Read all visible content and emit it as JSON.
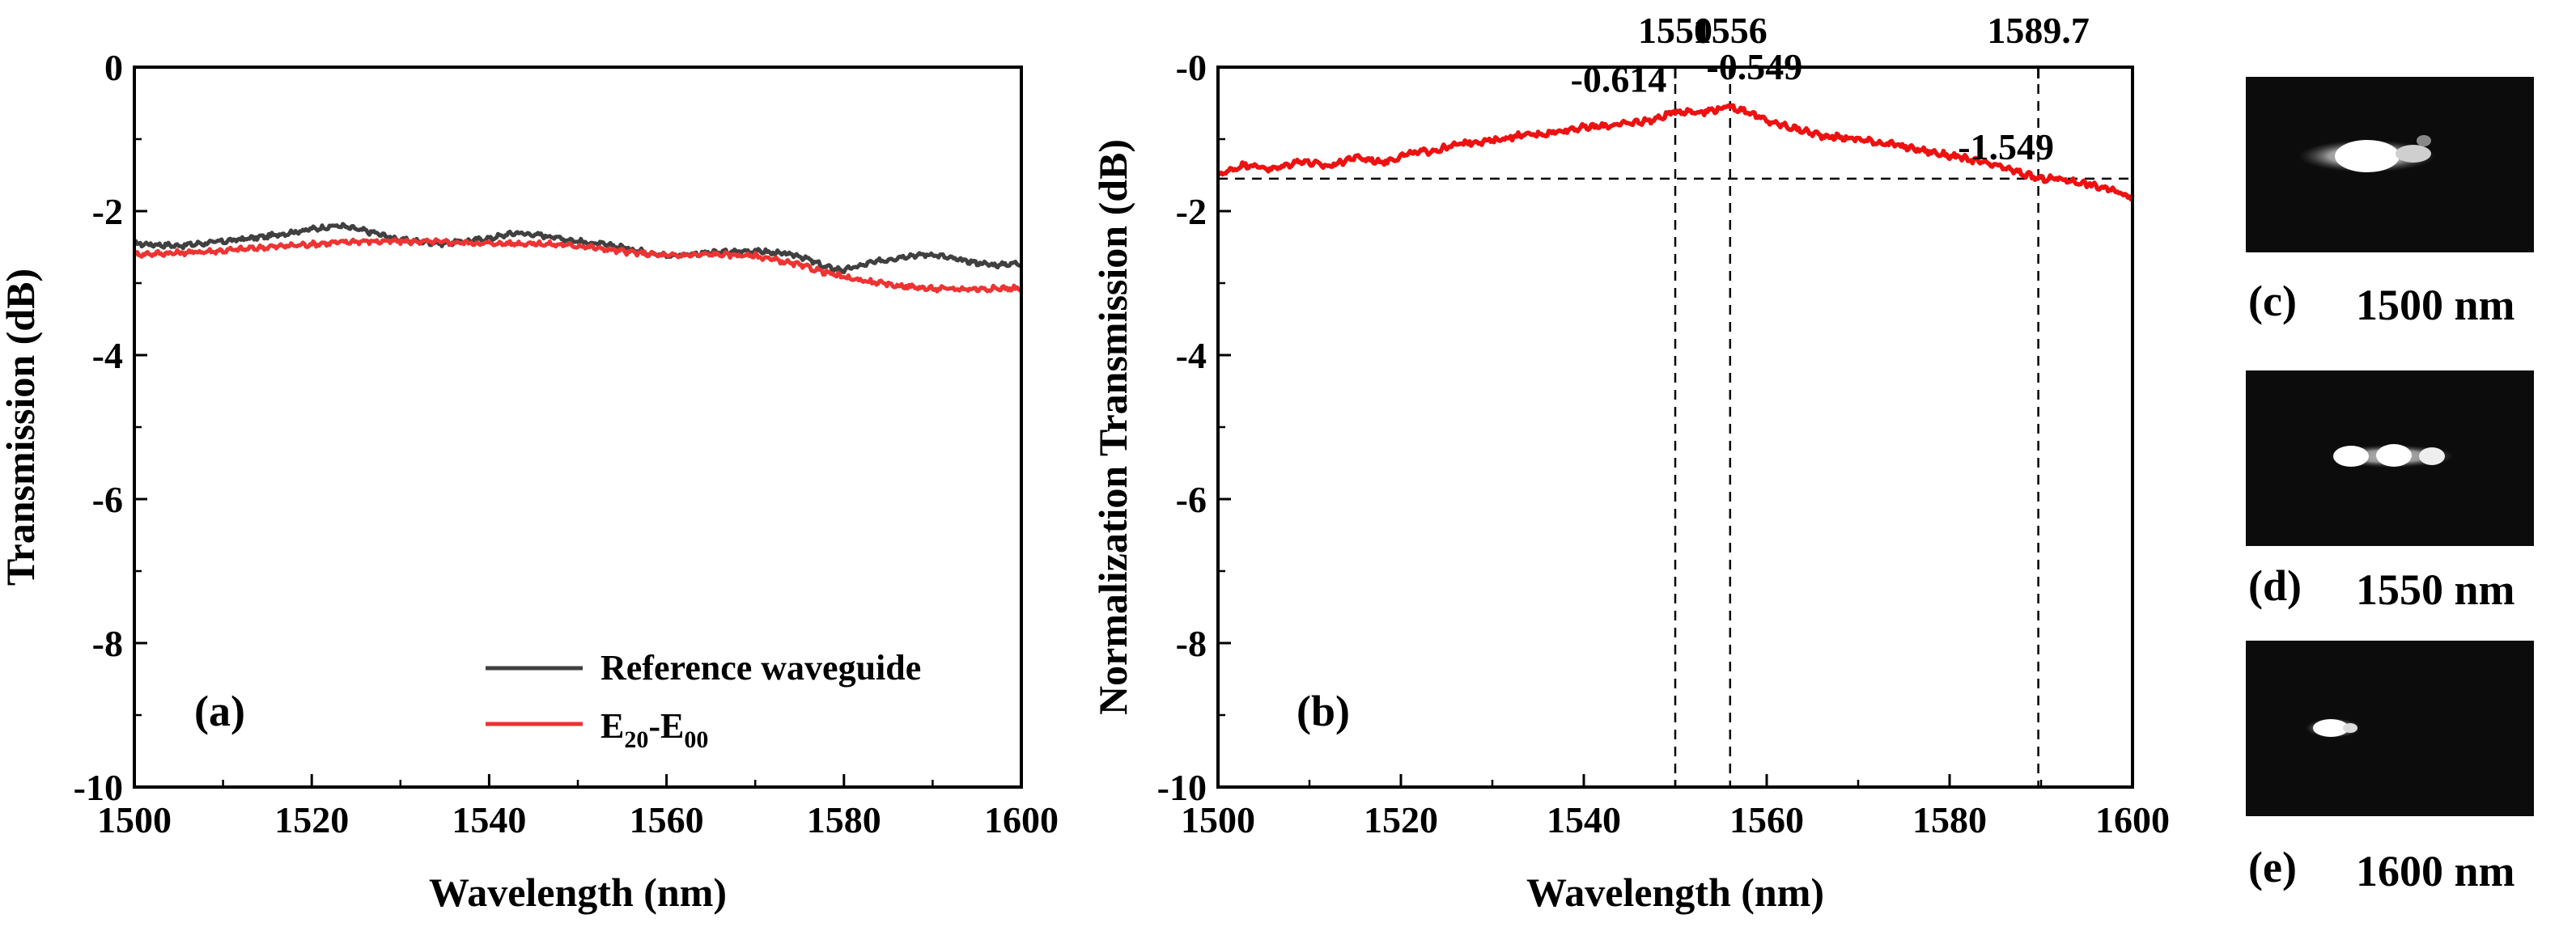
{
  "chart_data": [
    {
      "type": "line",
      "panel_label": "(a)",
      "xlabel": "Wavelength (nm)",
      "ylabel": "Transmission (dB)",
      "xlim": [
        1500,
        1600
      ],
      "ylim": [
        -10,
        0
      ],
      "x_ticks": [
        "1500",
        "1520",
        "1540",
        "1560",
        "1580",
        "1600"
      ],
      "y_ticks": [
        "0",
        "-2",
        "-4",
        "-6",
        "-8",
        "-10"
      ],
      "legend": {
        "position": "bottom-right",
        "entries": [
          {
            "label": "Reference waveguide",
            "series": 0
          },
          {
            "label_main": "E",
            "label_sub1": "20",
            "label_mid": "-E",
            "label_sub2": "00",
            "series": 1
          }
        ]
      },
      "series": [
        {
          "name": "Reference waveguide",
          "color": "#404040",
          "x": [
            1500,
            1505,
            1510,
            1515,
            1520,
            1523,
            1527,
            1530,
            1535,
            1540,
            1543,
            1547,
            1550,
            1555,
            1560,
            1565,
            1570,
            1575,
            1578,
            1580,
            1583,
            1587,
            1590,
            1593,
            1597,
            1600
          ],
          "y": [
            -2.45,
            -2.48,
            -2.42,
            -2.35,
            -2.25,
            -2.2,
            -2.3,
            -2.4,
            -2.45,
            -2.38,
            -2.3,
            -2.35,
            -2.42,
            -2.5,
            -2.62,
            -2.58,
            -2.55,
            -2.62,
            -2.78,
            -2.82,
            -2.72,
            -2.62,
            -2.6,
            -2.68,
            -2.75,
            -2.72
          ]
        },
        {
          "name": "E20-E00",
          "color": "#ee3333",
          "x": [
            1500,
            1505,
            1510,
            1515,
            1520,
            1525,
            1530,
            1535,
            1540,
            1545,
            1550,
            1555,
            1560,
            1565,
            1570,
            1575,
            1580,
            1585,
            1590,
            1595,
            1600
          ],
          "y": [
            -2.6,
            -2.58,
            -2.55,
            -2.5,
            -2.46,
            -2.42,
            -2.42,
            -2.43,
            -2.45,
            -2.45,
            -2.48,
            -2.56,
            -2.62,
            -2.6,
            -2.62,
            -2.75,
            -2.92,
            -3.02,
            -3.08,
            -3.08,
            -3.07
          ]
        }
      ]
    },
    {
      "type": "line",
      "panel_label": "(b)",
      "xlabel": "Wavelength (nm)",
      "ylabel": "Normalization Transmission (dB)",
      "xlim": [
        1500,
        1600
      ],
      "ylim": [
        -10,
        0
      ],
      "x_ticks": [
        "1500",
        "1520",
        "1540",
        "1560",
        "1580",
        "1600"
      ],
      "y_ticks": [
        "-0",
        "-2",
        "-4",
        "-6",
        "-8",
        "-10"
      ],
      "top_ticks": [
        {
          "x": 1550,
          "label": "1550"
        },
        {
          "x": 1556,
          "label": "1556"
        },
        {
          "x": 1589.7,
          "label": "1589.7"
        }
      ],
      "reference_line_y": -1.549,
      "annotations": [
        {
          "x": 1550,
          "y": -0.614,
          "label": "-0.614"
        },
        {
          "x": 1556,
          "y": -0.549,
          "label": "-0.549"
        },
        {
          "x": 1589.7,
          "y": -1.549,
          "label": "-1.549"
        }
      ],
      "series": [
        {
          "name": "Normalized transmission",
          "color": "#ee1111",
          "x": [
            1500,
            1503,
            1506,
            1509,
            1512,
            1515,
            1518,
            1521,
            1524,
            1527,
            1530,
            1533,
            1536,
            1539,
            1542,
            1545,
            1548,
            1550,
            1553,
            1556,
            1558,
            1560,
            1563,
            1566,
            1570,
            1574,
            1578,
            1582,
            1586,
            1589.7,
            1592,
            1595,
            1598,
            1600
          ],
          "y": [
            -1.5,
            -1.35,
            -1.42,
            -1.3,
            -1.38,
            -1.25,
            -1.32,
            -1.2,
            -1.15,
            -1.05,
            -1.02,
            -0.95,
            -0.92,
            -0.85,
            -0.82,
            -0.78,
            -0.72,
            -0.614,
            -0.62,
            -0.549,
            -0.62,
            -0.75,
            -0.85,
            -0.95,
            -1.0,
            -1.08,
            -1.18,
            -1.28,
            -1.4,
            -1.549,
            -1.55,
            -1.62,
            -1.72,
            -1.8
          ]
        }
      ]
    }
  ],
  "mode_images": [
    {
      "label_letter": "(c)",
      "label_wavelength": "1500 nm"
    },
    {
      "label_letter": "(d)",
      "label_wavelength": "1550 nm"
    },
    {
      "label_letter": "(e)",
      "label_wavelength": "1600 nm"
    }
  ]
}
